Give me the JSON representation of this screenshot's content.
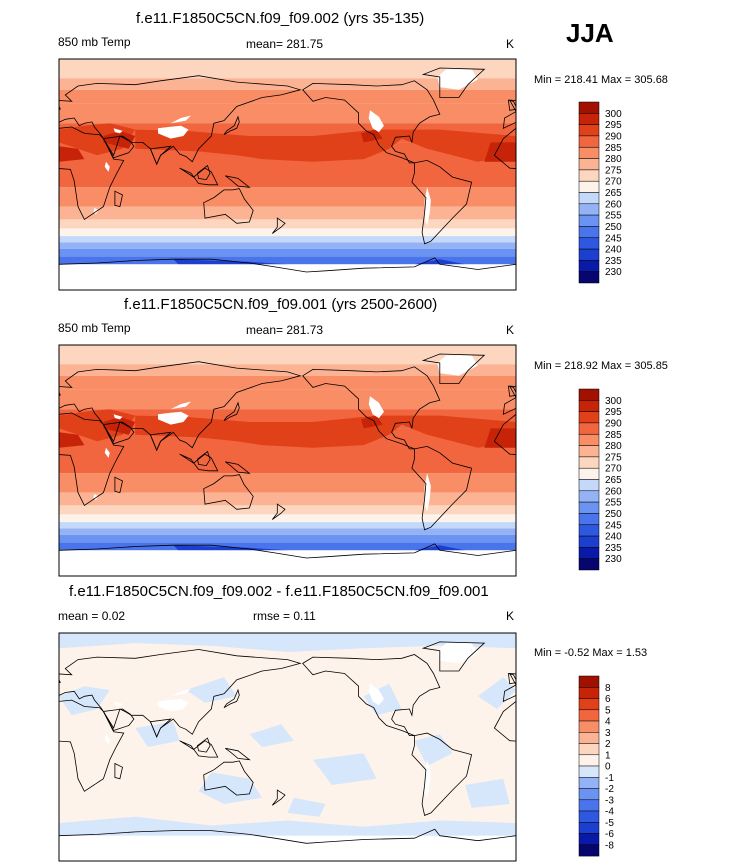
{
  "season": "JJA",
  "panels": [
    {
      "title": "f.e11.F1850C5CN.f09_f09.002 (yrs 35-135)",
      "left_label": "850 mb Temp",
      "center_label": "mean= 281.75",
      "units": "K",
      "minmax": "Min = 218.41 Max = 305.68",
      "kind": "temp"
    },
    {
      "title": "f.e11.F1850C5CN.f09_f09.001 (yrs 2500-2600)",
      "left_label": "850 mb Temp",
      "center_label": "mean= 281.73",
      "units": "K",
      "minmax": "Min = 218.92 Max = 305.85",
      "kind": "temp"
    },
    {
      "title": "f.e11.F1850C5CN.f09_f09.002 - f.e11.F1850C5CN.f09_f09.001",
      "left_label": "mean =   0.02",
      "center_label": "rmse =   0.11",
      "units": "K",
      "minmax": "Min =  -0.52 Max =   1.53",
      "kind": "diff"
    }
  ],
  "chart_data": [
    {
      "type": "heatmap",
      "title": "f.e11.F1850C5CN.f09_f09.002 (yrs 35-135)",
      "variable": "850 mb Temp",
      "units": "K",
      "mean": 281.75,
      "min": 218.41,
      "max": 305.68,
      "colorbar_levels": [
        230,
        235,
        240,
        245,
        250,
        255,
        260,
        265,
        270,
        275,
        280,
        285,
        290,
        295,
        300
      ],
      "colorbar_colors": [
        "#06066e",
        "#0a1aa8",
        "#1d3fd0",
        "#2e58e0",
        "#4a74ec",
        "#6b93f2",
        "#93b3f6",
        "#c4d8fa",
        "#fdf3ea",
        "#fcd6bf",
        "#fbb394",
        "#f98d66",
        "#f1653f",
        "#e14119",
        "#c62308",
        "#a01101"
      ]
    },
    {
      "type": "heatmap",
      "title": "f.e11.F1850C5CN.f09_f09.001 (yrs 2500-2600)",
      "variable": "850 mb Temp",
      "units": "K",
      "mean": 281.73,
      "min": 218.92,
      "max": 305.85,
      "colorbar_levels": [
        230,
        235,
        240,
        245,
        250,
        255,
        260,
        265,
        270,
        275,
        280,
        285,
        290,
        295,
        300
      ],
      "colorbar_colors": [
        "#06066e",
        "#0a1aa8",
        "#1d3fd0",
        "#2e58e0",
        "#4a74ec",
        "#6b93f2",
        "#93b3f6",
        "#c4d8fa",
        "#fdf3ea",
        "#fcd6bf",
        "#fbb394",
        "#f98d66",
        "#f1653f",
        "#e14119",
        "#c62308",
        "#a01101"
      ]
    },
    {
      "type": "heatmap",
      "title": "f.e11.F1850C5CN.f09_f09.002 - f.e11.F1850C5CN.f09_f09.001",
      "units": "K",
      "mean": 0.02,
      "rmse": 0.11,
      "min": -0.52,
      "max": 1.53,
      "colorbar_levels": [
        -8,
        -6,
        -5,
        -4,
        -3,
        -2,
        -1,
        0,
        1,
        2,
        3,
        4,
        5,
        6,
        8
      ],
      "colorbar_colors": [
        "#06066e",
        "#0a1aa8",
        "#1d3fd0",
        "#2e58e0",
        "#4a74ec",
        "#6b93f2",
        "#93b3f6",
        "#d6e6fb",
        "#fdf3ea",
        "#fcd6bf",
        "#fbb394",
        "#f98d66",
        "#f1653f",
        "#e14119",
        "#c62308",
        "#a01101"
      ]
    }
  ]
}
